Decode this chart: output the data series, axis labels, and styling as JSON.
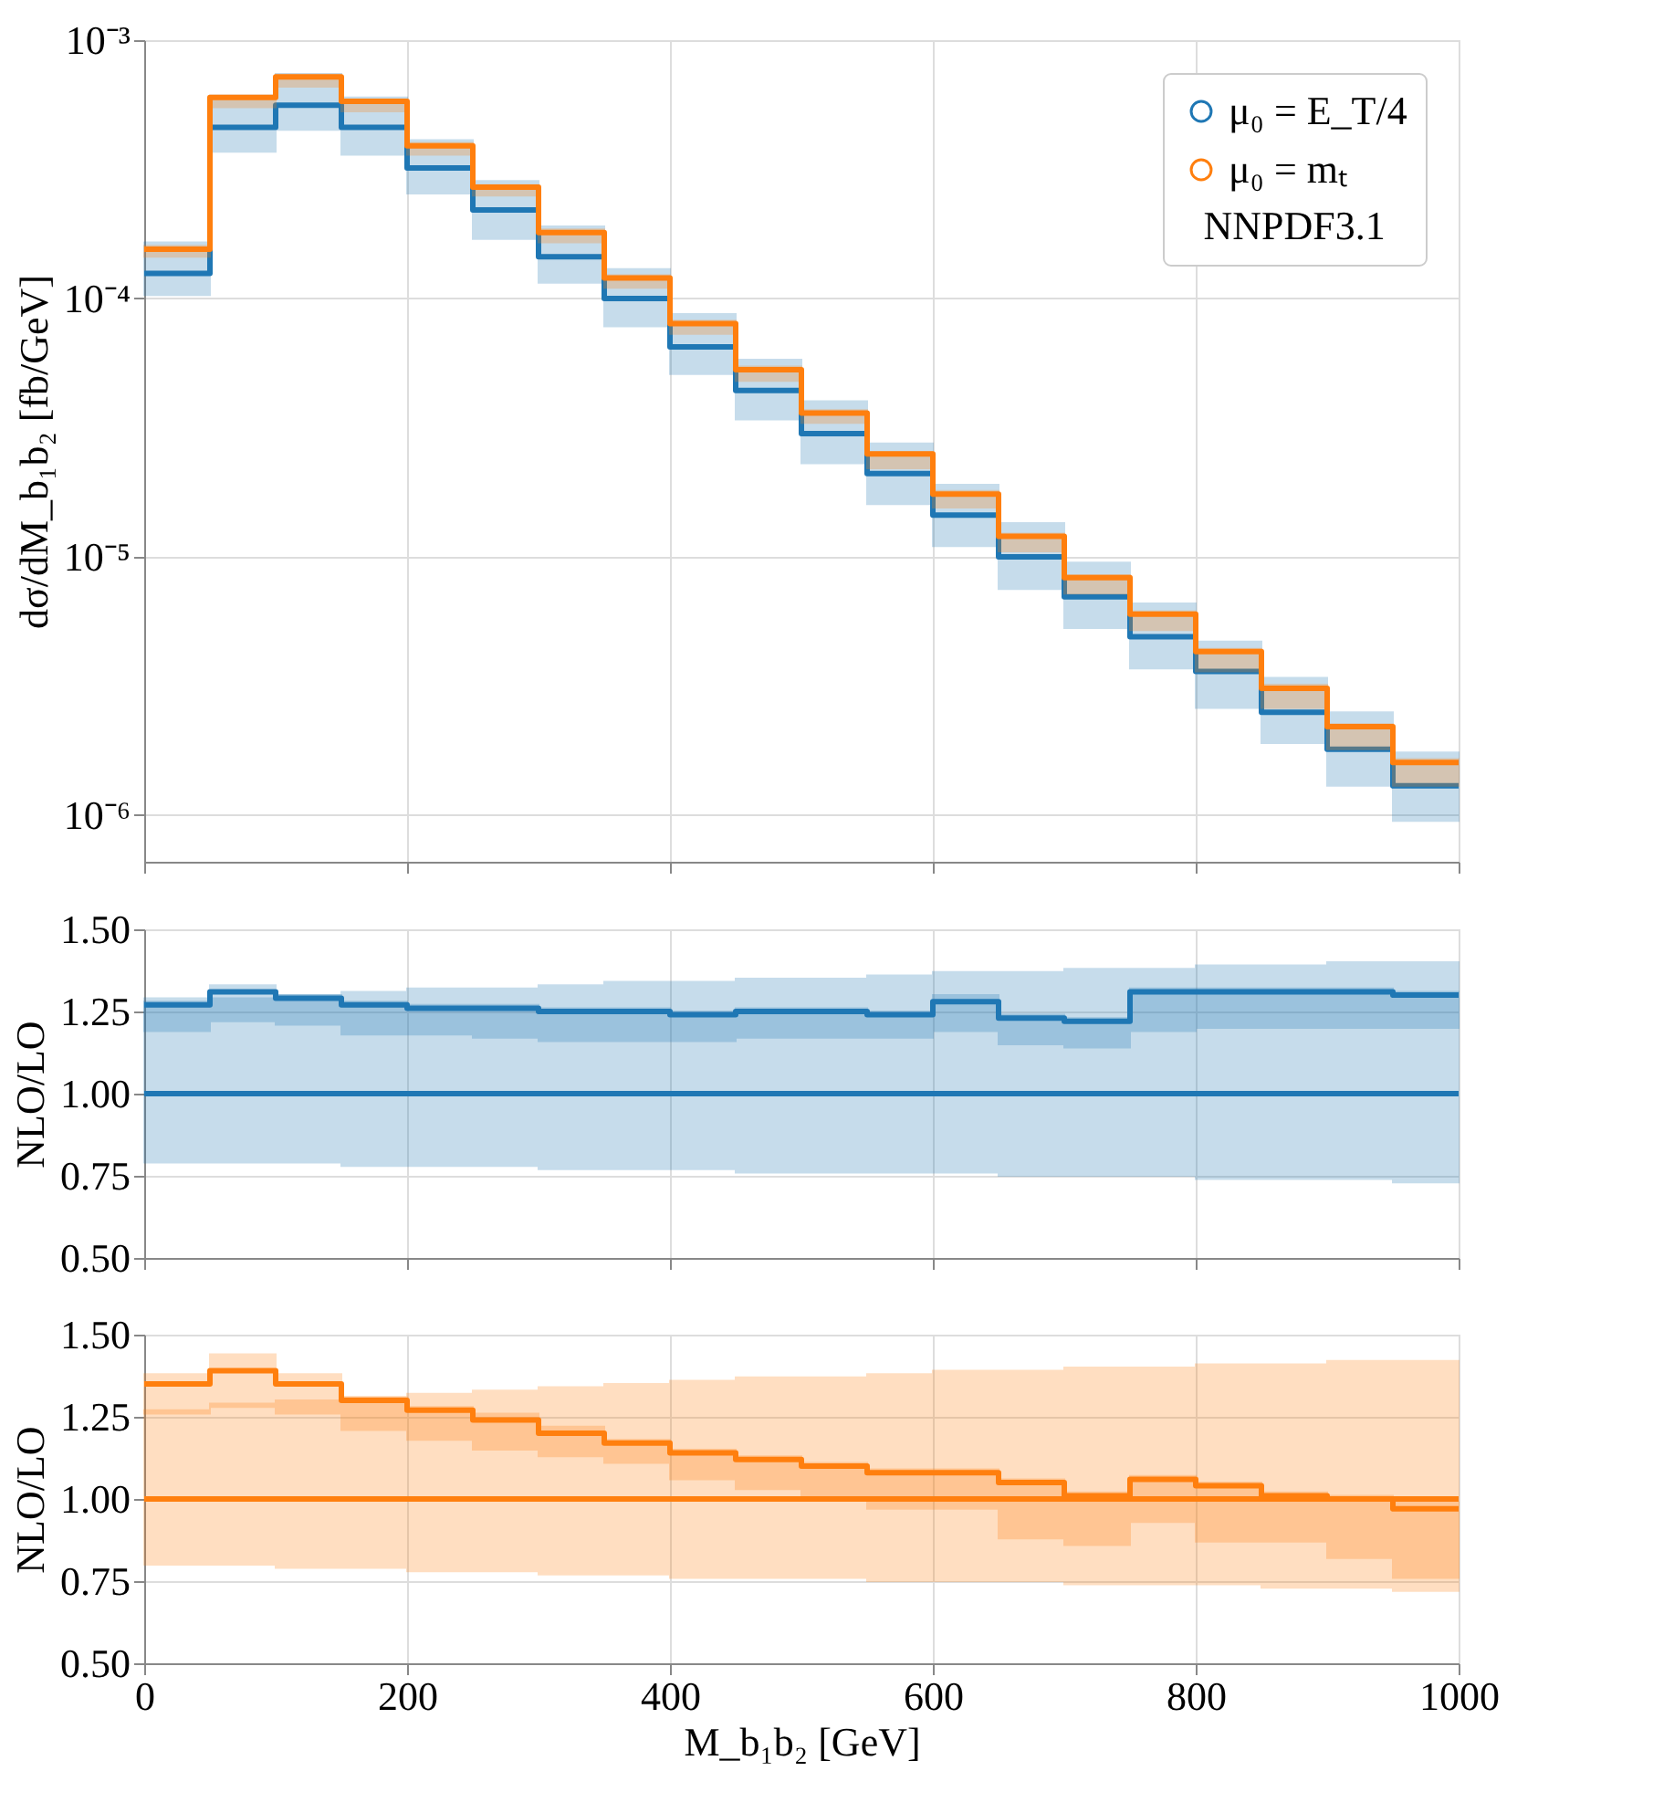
{
  "chart_data": [
    {
      "type": "step",
      "ylabel": "dσ/dM_b₁b₂ [fb/GeV]",
      "legend_title": "NNPDF3.1",
      "legend": "top right",
      "grid": true,
      "log": "y",
      "tick_labels": "y",
      "x": [
        0,
        50,
        100,
        150,
        200,
        250,
        300,
        350,
        400,
        450,
        500,
        550,
        600,
        650,
        700,
        750,
        800,
        850,
        900,
        950,
        1000
      ],
      "xlim": [
        0,
        1000
      ],
      "xticks": [
        0,
        200,
        400,
        600,
        800,
        1000
      ],
      "ylim": [
        6.6e-07,
        0.001
      ],
      "yticks": [
        {
          "value": 1e-06,
          "label": "10⁻⁶"
        },
        {
          "value": 1e-05,
          "label": "10⁻⁵"
        },
        {
          "value": 0.0001,
          "label": "10⁻⁴"
        },
        {
          "value": 0.001,
          "label": "10⁻³"
        }
      ],
      "series": [
        {
          "name": "μ₀ = E_T/4",
          "color": "#1f77b4",
          "values": [
            0.000125,
            0.00046,
            0.00056,
            0.00046,
            0.00032,
            0.00022,
            0.000145,
            0.0001,
            6.5e-05,
            4.4e-05,
            3e-05,
            2.1e-05,
            1.45e-05,
            1e-05,
            7e-06,
            4.9e-06,
            3.6e-06,
            2.5e-06,
            1.8e-06,
            1.3e-06,
            1.3e-06
          ],
          "lower": [
            0.000103,
            0.00037,
            0.00045,
            0.00036,
            0.000255,
            0.00017,
            0.000115,
            7.8e-05,
            5.1e-05,
            3.4e-05,
            2.3e-05,
            1.6e-05,
            1.1e-05,
            7.5e-06,
            5.3e-06,
            3.7e-06,
            2.6e-06,
            1.9e-06,
            1.3e-06,
            9.5e-07,
            9.5e-07
          ],
          "upper": [
            0.000165,
            0.00061,
            0.00074,
            0.0006,
            0.00041,
            0.000285,
            0.00019,
            0.00013,
            8.7e-05,
            5.8e-05,
            4e-05,
            2.75e-05,
            1.9e-05,
            1.35e-05,
            9.5e-06,
            6.6e-06,
            4.7e-06,
            3.4e-06,
            2.5e-06,
            1.75e-06,
            1.75e-06
          ]
        },
        {
          "name": "μ₀ = mₜ",
          "color": "#ff7f0e",
          "values": [
            0.000155,
            0.0006,
            0.00072,
            0.00058,
            0.00039,
            0.00027,
            0.00018,
            0.00012,
            8e-05,
            5.3e-05,
            3.6e-05,
            2.5e-05,
            1.75e-05,
            1.2e-05,
            8.3e-06,
            6e-06,
            4.3e-06,
            3.1e-06,
            2.2e-06,
            1.6e-06,
            1.6e-06
          ],
          "lower": [
            0.000145,
            0.00055,
            0.00066,
            0.00053,
            0.00036,
            0.00025,
            0.000165,
            0.00011,
            7.3e-05,
            4.8e-05,
            3.3e-05,
            2.2e-05,
            1.55e-05,
            1.05e-05,
            7.2e-06,
            5.2e-06,
            3.6e-06,
            2.6e-06,
            1.8e-06,
            1.3e-06,
            1.3e-06
          ],
          "upper": [
            0.00016,
            0.00061,
            0.000735,
            0.00059,
            0.0004,
            0.000275,
            0.000185,
            0.000123,
            8.2e-05,
            5.45e-05,
            3.7e-05,
            2.55e-05,
            1.8e-05,
            1.23e-05,
            8.5e-06,
            6.15e-06,
            4.4e-06,
            3.2e-06,
            2.25e-06,
            1.65e-06,
            1.65e-06
          ]
        }
      ]
    },
    {
      "type": "step",
      "ylabel": "NLO/LO",
      "grid": true,
      "tick_labels": "y",
      "x": [
        0,
        50,
        100,
        150,
        200,
        250,
        300,
        350,
        400,
        450,
        500,
        550,
        600,
        650,
        700,
        750,
        800,
        850,
        900,
        950,
        1000
      ],
      "xlim": [
        0,
        1000
      ],
      "xticks": [
        0,
        200,
        400,
        600,
        800,
        1000
      ],
      "ylim": [
        0.5,
        1.5
      ],
      "yticks": [
        {
          "value": 0.5,
          "label": "0.50"
        },
        {
          "value": 0.75,
          "label": "0.75"
        },
        {
          "value": 1,
          "label": "1.00"
        },
        {
          "value": 1.25,
          "label": "1.25"
        },
        {
          "value": 1.5,
          "label": "1.50"
        }
      ],
      "series": [
        {
          "color": "#1f77b4",
          "values": [
            1.27,
            1.31,
            1.29,
            1.27,
            1.26,
            1.26,
            1.25,
            1.25,
            1.24,
            1.25,
            1.25,
            1.24,
            1.28,
            1.23,
            1.22,
            1.31,
            1.31,
            1.31,
            1.31,
            1.3,
            1.3
          ],
          "lower": [
            1.19,
            1.22,
            1.21,
            1.18,
            1.18,
            1.17,
            1.16,
            1.16,
            1.16,
            1.17,
            1.17,
            1.17,
            1.19,
            1.15,
            1.14,
            1.19,
            1.2,
            1.2,
            1.2,
            1.2,
            1.2
          ],
          "upper": [
            1.29,
            1.33,
            1.3,
            1.28,
            1.27,
            1.27,
            1.26,
            1.26,
            1.25,
            1.26,
            1.26,
            1.25,
            1.3,
            1.24,
            1.23,
            1.32,
            1.32,
            1.32,
            1.32,
            1.31,
            1.31
          ]
        },
        {
          "color": "#1f77b4",
          "values": [
            1,
            1,
            1,
            1,
            1,
            1,
            1,
            1,
            1,
            1,
            1,
            1,
            1,
            1,
            1,
            1,
            1,
            1,
            1,
            1,
            1
          ],
          "lower": [
            0.79,
            0.79,
            0.79,
            0.78,
            0.78,
            0.78,
            0.77,
            0.77,
            0.77,
            0.76,
            0.76,
            0.76,
            0.76,
            0.75,
            0.75,
            0.75,
            0.74,
            0.74,
            0.74,
            0.73,
            0.73
          ],
          "upper": [
            1.28,
            1.29,
            1.3,
            1.31,
            1.32,
            1.32,
            1.33,
            1.34,
            1.34,
            1.35,
            1.35,
            1.36,
            1.37,
            1.37,
            1.38,
            1.38,
            1.39,
            1.39,
            1.4,
            1.4,
            1.4
          ]
        }
      ]
    },
    {
      "type": "step",
      "ylabel": "NLO/LO",
      "xlabel": "M_b₁b₂ [GeV]",
      "grid": true,
      "x": [
        0,
        50,
        100,
        150,
        200,
        250,
        300,
        350,
        400,
        450,
        500,
        550,
        600,
        650,
        700,
        750,
        800,
        850,
        900,
        950,
        1000
      ],
      "xlim": [
        0,
        1000
      ],
      "xticks": [
        0,
        200,
        400,
        600,
        800,
        1000
      ],
      "ylim": [
        0.5,
        1.5
      ],
      "yticks": [
        {
          "value": 0.5,
          "label": "0.50"
        },
        {
          "value": 0.75,
          "label": "0.75"
        },
        {
          "value": 1,
          "label": "1.00"
        },
        {
          "value": 1.25,
          "label": "1.25"
        },
        {
          "value": 1.5,
          "label": "1.50"
        }
      ],
      "series": [
        {
          "color": "#ff7f0e",
          "values": [
            1.35,
            1.39,
            1.35,
            1.3,
            1.27,
            1.24,
            1.2,
            1.17,
            1.14,
            1.12,
            1.1,
            1.08,
            1.08,
            1.05,
            1.01,
            1.06,
            1.04,
            1.01,
            1.0,
            0.97,
            0.97
          ],
          "lower": [
            1.26,
            1.28,
            1.26,
            1.21,
            1.18,
            1.15,
            1.13,
            1.11,
            1.06,
            1.03,
            1.01,
            0.97,
            0.97,
            0.88,
            0.86,
            0.93,
            0.87,
            0.87,
            0.82,
            0.76,
            0.76
          ],
          "upper": [
            1.38,
            1.44,
            1.38,
            1.31,
            1.28,
            1.26,
            1.22,
            1.18,
            1.15,
            1.13,
            1.11,
            1.09,
            1.09,
            1.06,
            1.02,
            1.07,
            1.05,
            1.02,
            1.01,
            0.99,
            0.99
          ]
        },
        {
          "color": "#ff7f0e",
          "values": [
            1,
            1,
            1,
            1,
            1,
            1,
            1,
            1,
            1,
            1,
            1,
            1,
            1,
            1,
            1,
            1,
            1,
            1,
            1,
            1,
            1
          ],
          "lower": [
            0.8,
            0.8,
            0.79,
            0.79,
            0.78,
            0.78,
            0.77,
            0.77,
            0.76,
            0.76,
            0.76,
            0.75,
            0.75,
            0.75,
            0.74,
            0.74,
            0.74,
            0.73,
            0.73,
            0.72,
            0.72
          ],
          "upper": [
            1.27,
            1.29,
            1.3,
            1.31,
            1.32,
            1.33,
            1.34,
            1.35,
            1.36,
            1.37,
            1.37,
            1.38,
            1.39,
            1.39,
            1.4,
            1.4,
            1.41,
            1.41,
            1.42,
            1.42,
            1.42
          ]
        }
      ]
    }
  ]
}
